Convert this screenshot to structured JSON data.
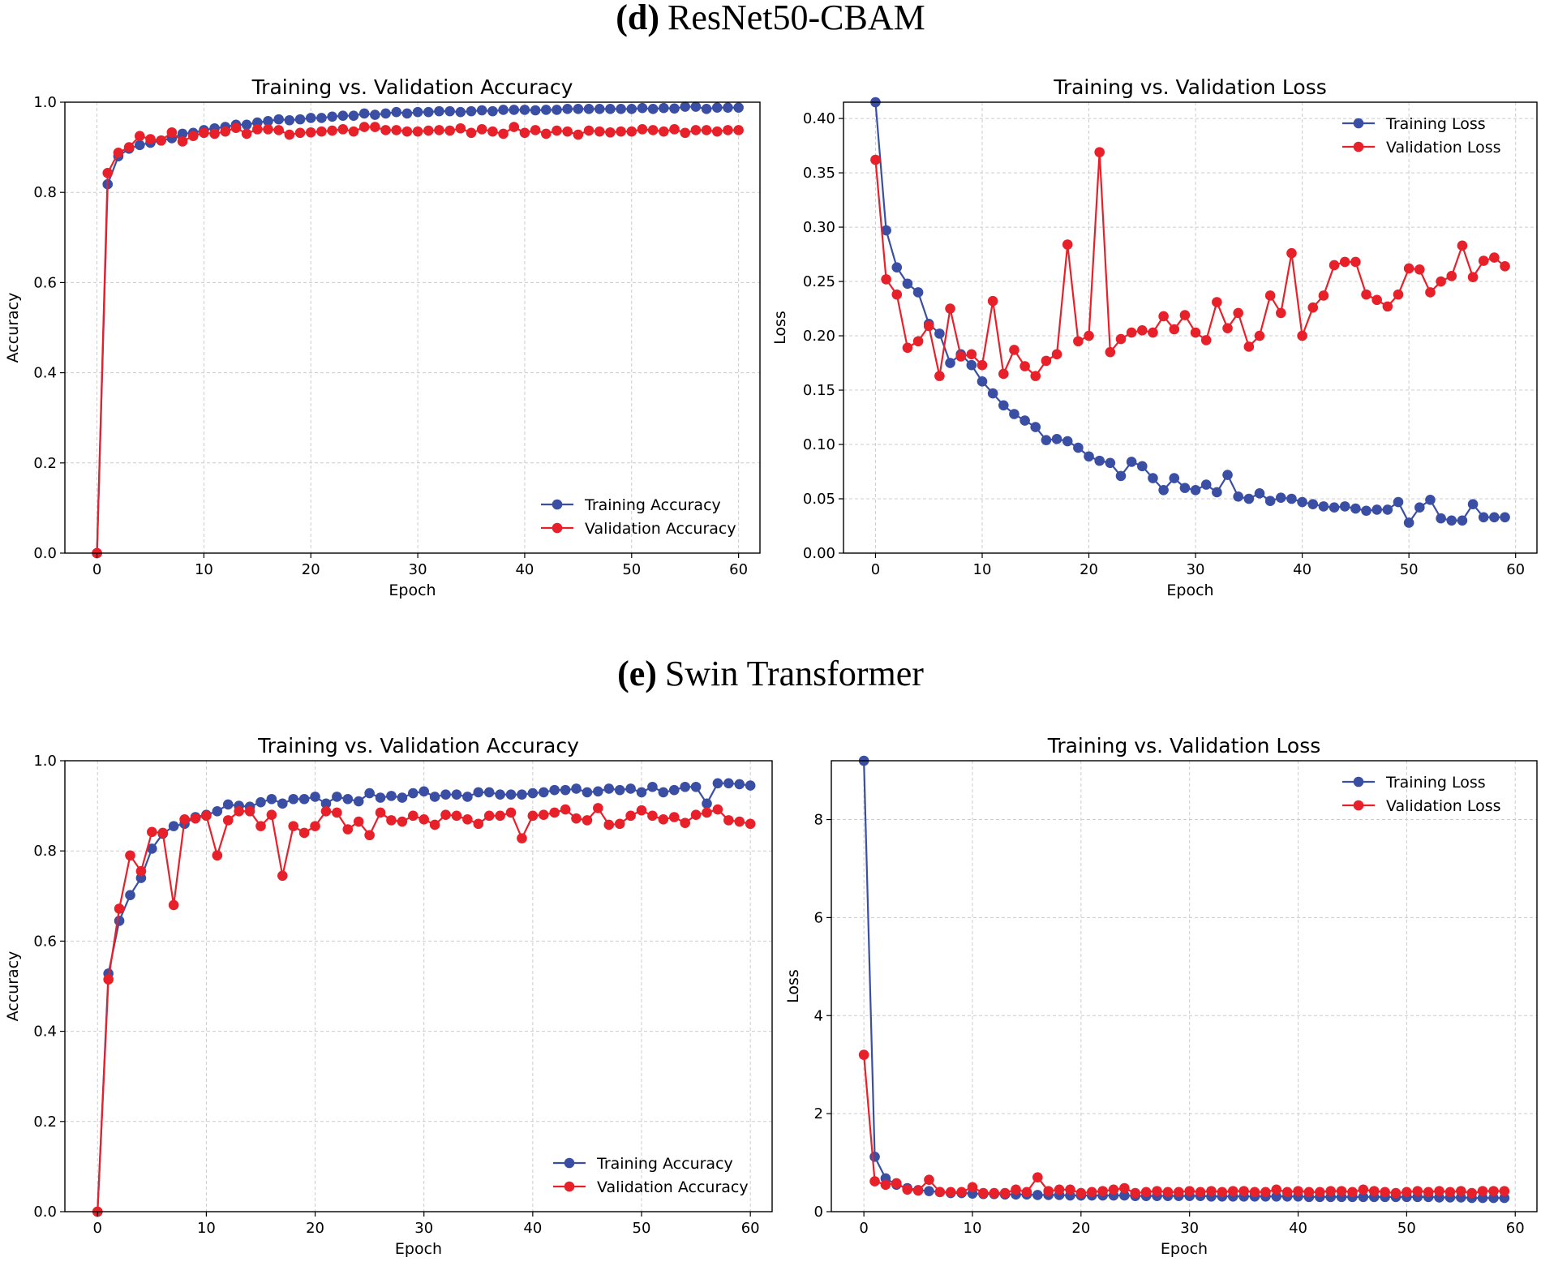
{
  "figure": {
    "panel_d": {
      "letter": "(d)",
      "name": "ResNet50-CBAM"
    },
    "panel_e": {
      "letter": "(e)",
      "name": "Swin Transformer"
    }
  },
  "colors": {
    "training": "#3a4fa3",
    "validation": "#e8202a"
  },
  "chart_data": [
    {
      "id": "d-accuracy",
      "type": "line",
      "title": "Training vs. Validation Accuracy",
      "xlabel": "Epoch",
      "ylabel": "Accuracy",
      "xlim": [
        -3,
        62
      ],
      "ylim": [
        0.0,
        1.0
      ],
      "xticks": [
        0,
        10,
        20,
        30,
        40,
        50,
        60
      ],
      "xtick_labels": [
        "0",
        "10",
        "20",
        "30",
        "40",
        "50",
        "60"
      ],
      "yticks": [
        0.0,
        0.2,
        0.4,
        0.6,
        0.8,
        1.0
      ],
      "ytick_labels": [
        "0.0",
        "0.2",
        "0.4",
        "0.6",
        "0.8",
        "1.0"
      ],
      "grid": true,
      "legend_position": "lower-right",
      "x": [
        0,
        1,
        2,
        3,
        4,
        5,
        6,
        7,
        8,
        9,
        10,
        11,
        12,
        13,
        14,
        15,
        16,
        17,
        18,
        19,
        20,
        21,
        22,
        23,
        24,
        25,
        26,
        27,
        28,
        29,
        30,
        31,
        32,
        33,
        34,
        35,
        36,
        37,
        38,
        39,
        40,
        41,
        42,
        43,
        44,
        45,
        46,
        47,
        48,
        49,
        50,
        51,
        52,
        53,
        54,
        55,
        56,
        57,
        58,
        59,
        60
      ],
      "series": [
        {
          "name": "Training Accuracy",
          "color_key": "training",
          "values": [
            0.0,
            0.818,
            0.88,
            0.897,
            0.905,
            0.91,
            0.915,
            0.92,
            0.93,
            0.932,
            0.938,
            0.942,
            0.945,
            0.95,
            0.95,
            0.955,
            0.958,
            0.962,
            0.96,
            0.962,
            0.965,
            0.965,
            0.968,
            0.97,
            0.97,
            0.975,
            0.972,
            0.975,
            0.978,
            0.975,
            0.978,
            0.978,
            0.98,
            0.98,
            0.978,
            0.98,
            0.982,
            0.98,
            0.983,
            0.983,
            0.983,
            0.982,
            0.983,
            0.983,
            0.985,
            0.985,
            0.985,
            0.985,
            0.985,
            0.985,
            0.985,
            0.987,
            0.985,
            0.987,
            0.986,
            0.99,
            0.99,
            0.985,
            0.988,
            0.988,
            0.988
          ]
        },
        {
          "name": "Validation Accuracy",
          "color_key": "validation",
          "values": [
            0.0,
            0.843,
            0.888,
            0.9,
            0.925,
            0.918,
            0.915,
            0.933,
            0.913,
            0.925,
            0.932,
            0.93,
            0.935,
            0.943,
            0.93,
            0.94,
            0.94,
            0.938,
            0.928,
            0.932,
            0.933,
            0.935,
            0.937,
            0.94,
            0.935,
            0.945,
            0.945,
            0.938,
            0.938,
            0.935,
            0.935,
            0.937,
            0.938,
            0.937,
            0.942,
            0.932,
            0.94,
            0.935,
            0.93,
            0.945,
            0.932,
            0.938,
            0.93,
            0.937,
            0.935,
            0.928,
            0.937,
            0.935,
            0.933,
            0.935,
            0.935,
            0.94,
            0.938,
            0.935,
            0.94,
            0.932,
            0.938,
            0.938,
            0.935,
            0.938,
            0.938
          ]
        }
      ]
    },
    {
      "id": "d-loss",
      "type": "line",
      "title": "Training vs. Validation Loss",
      "xlabel": "Epoch",
      "ylabel": "Loss",
      "xlim": [
        -3,
        62
      ],
      "ylim": [
        0.0,
        0.415
      ],
      "xticks": [
        0,
        10,
        20,
        30,
        40,
        50,
        60
      ],
      "xtick_labels": [
        "0",
        "10",
        "20",
        "30",
        "40",
        "50",
        "60"
      ],
      "yticks": [
        0.0,
        0.05,
        0.1,
        0.15,
        0.2,
        0.25,
        0.3,
        0.35,
        0.4
      ],
      "ytick_labels": [
        "0.00",
        "0.05",
        "0.10",
        "0.15",
        "0.20",
        "0.25",
        "0.30",
        "0.35",
        "0.40"
      ],
      "grid": true,
      "legend_position": "upper-right",
      "x": [
        0,
        1,
        2,
        3,
        4,
        5,
        6,
        7,
        8,
        9,
        10,
        11,
        12,
        13,
        14,
        15,
        16,
        17,
        18,
        19,
        20,
        21,
        22,
        23,
        24,
        25,
        26,
        27,
        28,
        29,
        30,
        31,
        32,
        33,
        34,
        35,
        36,
        37,
        38,
        39,
        40,
        41,
        42,
        43,
        44,
        45,
        46,
        47,
        48,
        49,
        50,
        51,
        52,
        53,
        54,
        55,
        56,
        57,
        58,
        59
      ],
      "series": [
        {
          "name": "Training Loss",
          "color_key": "training",
          "values": [
            0.415,
            0.297,
            0.263,
            0.248,
            0.24,
            0.211,
            0.202,
            0.175,
            0.183,
            0.173,
            0.158,
            0.147,
            0.136,
            0.128,
            0.122,
            0.116,
            0.104,
            0.105,
            0.103,
            0.097,
            0.089,
            0.085,
            0.083,
            0.071,
            0.084,
            0.08,
            0.069,
            0.058,
            0.069,
            0.06,
            0.058,
            0.063,
            0.056,
            0.072,
            0.052,
            0.05,
            0.055,
            0.048,
            0.051,
            0.05,
            0.047,
            0.045,
            0.043,
            0.042,
            0.043,
            0.041,
            0.039,
            0.04,
            0.04,
            0.047,
            0.028,
            0.042,
            0.049,
            0.032,
            0.03,
            0.03,
            0.045,
            0.033,
            0.033,
            0.033
          ]
        },
        {
          "name": "Validation Loss",
          "color_key": "validation",
          "values": [
            0.362,
            0.252,
            0.238,
            0.189,
            0.195,
            0.209,
            0.163,
            0.225,
            0.181,
            0.183,
            0.173,
            0.232,
            0.165,
            0.187,
            0.172,
            0.163,
            0.177,
            0.183,
            0.284,
            0.195,
            0.2,
            0.369,
            0.185,
            0.197,
            0.203,
            0.205,
            0.203,
            0.218,
            0.206,
            0.219,
            0.203,
            0.196,
            0.231,
            0.207,
            0.221,
            0.19,
            0.2,
            0.237,
            0.221,
            0.276,
            0.2,
            0.226,
            0.237,
            0.265,
            0.268,
            0.268,
            0.238,
            0.233,
            0.227,
            0.238,
            0.262,
            0.261,
            0.24,
            0.25,
            0.255,
            0.283,
            0.254,
            0.269,
            0.272,
            0.264
          ]
        }
      ]
    },
    {
      "id": "e-accuracy",
      "type": "line",
      "title": "Training vs. Validation Accuracy",
      "xlabel": "Epoch",
      "ylabel": "Accuracy",
      "xlim": [
        -3,
        62
      ],
      "ylim": [
        0.0,
        1.0
      ],
      "xticks": [
        0,
        10,
        20,
        30,
        40,
        50,
        60
      ],
      "xtick_labels": [
        "0",
        "10",
        "20",
        "30",
        "40",
        "50",
        "60"
      ],
      "yticks": [
        0.0,
        0.2,
        0.4,
        0.6,
        0.8,
        1.0
      ],
      "ytick_labels": [
        "0.0",
        "0.2",
        "0.4",
        "0.6",
        "0.8",
        "1.0"
      ],
      "grid": true,
      "legend_position": "lower-right",
      "x": [
        0,
        1,
        2,
        3,
        4,
        5,
        6,
        7,
        8,
        9,
        10,
        11,
        12,
        13,
        14,
        15,
        16,
        17,
        18,
        19,
        20,
        21,
        22,
        23,
        24,
        25,
        26,
        27,
        28,
        29,
        30,
        31,
        32,
        33,
        34,
        35,
        36,
        37,
        38,
        39,
        40,
        41,
        42,
        43,
        44,
        45,
        46,
        47,
        48,
        49,
        50,
        51,
        52,
        53,
        54,
        55,
        56,
        57,
        58,
        59,
        60
      ],
      "series": [
        {
          "name": "Training Accuracy",
          "color_key": "training",
          "values": [
            0.0,
            0.528,
            0.645,
            0.702,
            0.74,
            0.805,
            0.838,
            0.855,
            0.86,
            0.875,
            0.88,
            0.888,
            0.903,
            0.9,
            0.898,
            0.908,
            0.915,
            0.905,
            0.915,
            0.915,
            0.92,
            0.905,
            0.92,
            0.915,
            0.91,
            0.928,
            0.918,
            0.922,
            0.918,
            0.928,
            0.932,
            0.92,
            0.925,
            0.925,
            0.92,
            0.93,
            0.93,
            0.925,
            0.925,
            0.925,
            0.928,
            0.93,
            0.935,
            0.935,
            0.938,
            0.93,
            0.932,
            0.938,
            0.935,
            0.938,
            0.93,
            0.942,
            0.93,
            0.935,
            0.942,
            0.942,
            0.905,
            0.95,
            0.95,
            0.948,
            0.945
          ]
        },
        {
          "name": "Validation Accuracy",
          "color_key": "validation",
          "values": [
            0.0,
            0.515,
            0.672,
            0.79,
            0.755,
            0.842,
            0.84,
            0.68,
            0.87,
            0.872,
            0.878,
            0.79,
            0.868,
            0.888,
            0.888,
            0.855,
            0.88,
            0.745,
            0.855,
            0.84,
            0.855,
            0.888,
            0.885,
            0.848,
            0.865,
            0.835,
            0.885,
            0.868,
            0.865,
            0.878,
            0.87,
            0.858,
            0.88,
            0.878,
            0.87,
            0.86,
            0.878,
            0.878,
            0.885,
            0.828,
            0.878,
            0.88,
            0.885,
            0.892,
            0.872,
            0.868,
            0.895,
            0.858,
            0.86,
            0.878,
            0.89,
            0.878,
            0.87,
            0.875,
            0.862,
            0.88,
            0.885,
            0.892,
            0.868,
            0.865,
            0.86
          ]
        }
      ]
    },
    {
      "id": "e-loss",
      "type": "line",
      "title": "Training vs. Validation Loss",
      "xlabel": "Epoch",
      "ylabel": "Loss",
      "xlim": [
        -3,
        62
      ],
      "ylim": [
        0.0,
        9.2
      ],
      "xticks": [
        0,
        10,
        20,
        30,
        40,
        50,
        60
      ],
      "xtick_labels": [
        "0",
        "10",
        "20",
        "30",
        "40",
        "50",
        "60"
      ],
      "yticks": [
        0,
        2,
        4,
        6,
        8
      ],
      "ytick_labels": [
        "0",
        "2",
        "4",
        "6",
        "8"
      ],
      "grid": true,
      "legend_position": "upper-right",
      "x": [
        0,
        1,
        2,
        3,
        4,
        5,
        6,
        7,
        8,
        9,
        10,
        11,
        12,
        13,
        14,
        15,
        16,
        17,
        18,
        19,
        20,
        21,
        22,
        23,
        24,
        25,
        26,
        27,
        28,
        29,
        30,
        31,
        32,
        33,
        34,
        35,
        36,
        37,
        38,
        39,
        40,
        41,
        42,
        43,
        44,
        45,
        46,
        47,
        48,
        49,
        50,
        51,
        52,
        53,
        54,
        55,
        56,
        57,
        58,
        59
      ],
      "series": [
        {
          "name": "Training Loss",
          "color_key": "training",
          "values": [
            9.2,
            1.12,
            0.68,
            0.55,
            0.48,
            0.44,
            0.42,
            0.4,
            0.38,
            0.38,
            0.37,
            0.36,
            0.36,
            0.35,
            0.35,
            0.35,
            0.34,
            0.34,
            0.34,
            0.33,
            0.33,
            0.33,
            0.33,
            0.33,
            0.33,
            0.32,
            0.32,
            0.32,
            0.32,
            0.32,
            0.32,
            0.32,
            0.31,
            0.31,
            0.31,
            0.31,
            0.31,
            0.31,
            0.31,
            0.31,
            0.31,
            0.3,
            0.3,
            0.3,
            0.3,
            0.3,
            0.3,
            0.3,
            0.3,
            0.3,
            0.3,
            0.3,
            0.3,
            0.29,
            0.29,
            0.29,
            0.28,
            0.28,
            0.28,
            0.28
          ]
        },
        {
          "name": "Validation Loss",
          "color_key": "validation",
          "values": [
            3.2,
            0.62,
            0.55,
            0.58,
            0.45,
            0.43,
            0.65,
            0.4,
            0.4,
            0.4,
            0.5,
            0.38,
            0.38,
            0.38,
            0.45,
            0.4,
            0.7,
            0.42,
            0.45,
            0.45,
            0.38,
            0.4,
            0.42,
            0.45,
            0.48,
            0.38,
            0.4,
            0.42,
            0.4,
            0.4,
            0.42,
            0.4,
            0.42,
            0.4,
            0.42,
            0.42,
            0.4,
            0.4,
            0.45,
            0.4,
            0.42,
            0.4,
            0.4,
            0.42,
            0.42,
            0.4,
            0.45,
            0.42,
            0.4,
            0.38,
            0.4,
            0.42,
            0.4,
            0.42,
            0.4,
            0.42,
            0.38,
            0.42,
            0.42,
            0.42
          ]
        }
      ]
    }
  ]
}
